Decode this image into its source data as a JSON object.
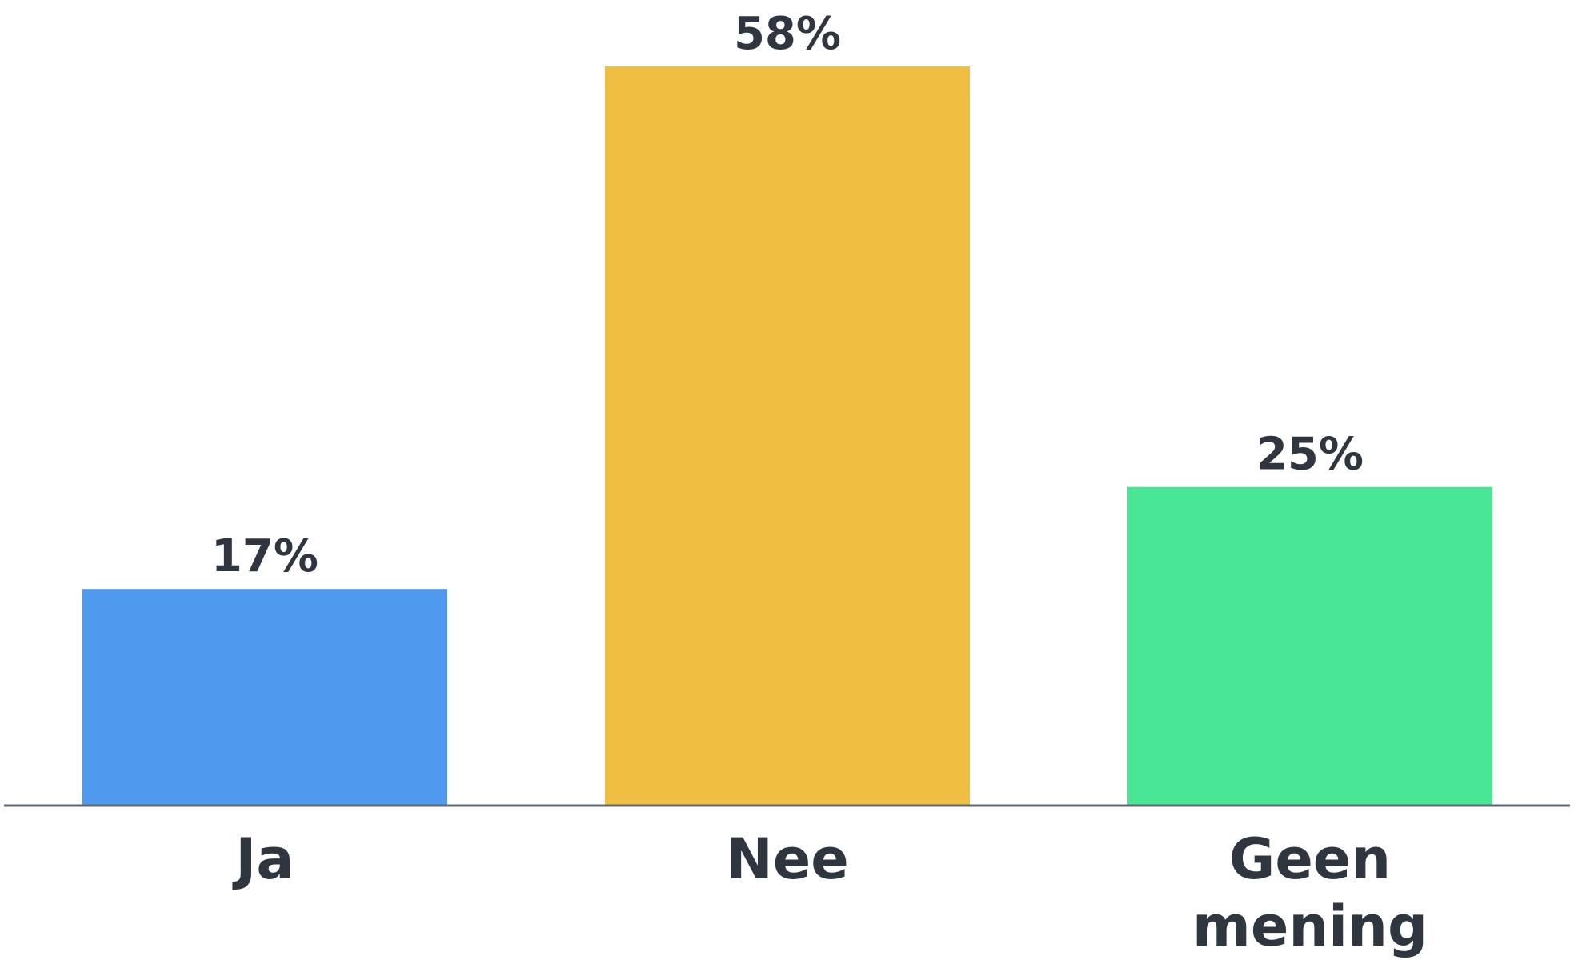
{
  "chart_data": {
    "type": "bar",
    "categories": [
      "Ja",
      "Nee",
      "Geen mening"
    ],
    "category_lines": [
      [
        "Ja"
      ],
      [
        "Nee"
      ],
      [
        "Geen",
        "mening"
      ]
    ],
    "values": [
      17,
      58,
      25
    ],
    "value_labels": [
      "17%",
      "58%",
      "25%"
    ],
    "unit": "%",
    "colors": [
      "#4f9aef",
      "#f0be41",
      "#48e695"
    ],
    "label_color": "#2f3640",
    "axis_color": "#5f6872",
    "ylim": [
      0,
      58
    ],
    "grid": false,
    "legend": "none",
    "title": "",
    "xlabel": "",
    "ylabel": ""
  }
}
